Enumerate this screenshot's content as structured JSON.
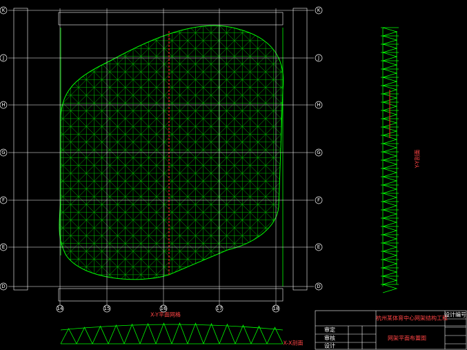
{
  "axes": {
    "rows": [
      "K",
      "J",
      "H",
      "G",
      "F",
      "E",
      "D"
    ],
    "columns": [
      "14",
      "15",
      "16",
      "17",
      "18"
    ]
  },
  "captions": {
    "plan": "X-Y平面网格",
    "section": "X-X剖面",
    "side": "Y-Y剖面"
  },
  "title_block": {
    "project": "杭州某体育中心网架结构工程",
    "drawing": "网架平面布置图",
    "number": "设计编号",
    "roles": [
      "审定",
      "审核",
      "设计"
    ]
  }
}
